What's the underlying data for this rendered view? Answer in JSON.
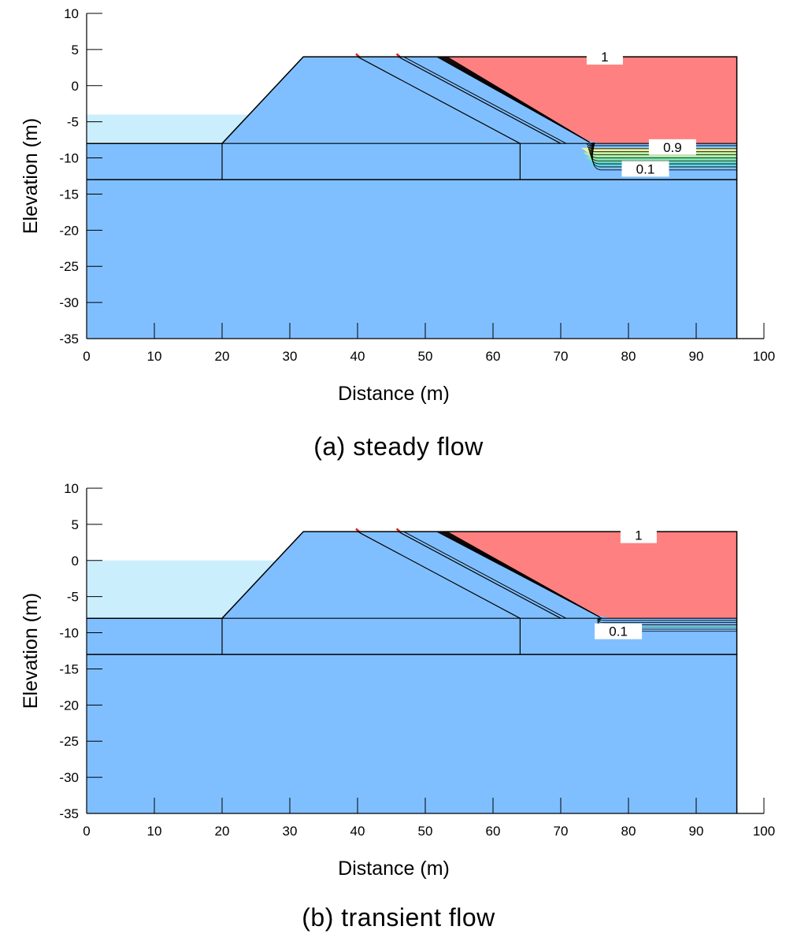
{
  "chart_data": [
    {
      "type": "contour",
      "caption": "(a) steady flow",
      "xlabel": "Distance (m)",
      "ylabel": "Elevation (m)",
      "xlim": [
        0,
        100
      ],
      "ylim": [
        -35,
        10
      ],
      "xticks": [
        0,
        10,
        20,
        30,
        40,
        50,
        60,
        70,
        80,
        90,
        100
      ],
      "yticks": [
        10,
        5,
        0,
        -5,
        -10,
        -15,
        -20,
        -25,
        -30,
        -35
      ],
      "colors": {
        "soil": "#80bfff",
        "saturated": "#ff8080",
        "water": "#cbeefc"
      },
      "reservoir_level": -4,
      "tailwater_toe_x": 74,
      "contour_labels": [
        {
          "text": "1",
          "x": 76.5,
          "y": 4.0
        },
        {
          "text": "0.9",
          "x": 86.5,
          "y": -8.5
        },
        {
          "text": "0.1",
          "x": 82.5,
          "y": -11.5
        }
      ]
    },
    {
      "type": "contour",
      "caption": "(b) transient flow",
      "xlabel": "Distance (m)",
      "ylabel": "Elevation (m)",
      "xlim": [
        0,
        100
      ],
      "ylim": [
        -35,
        10
      ],
      "xticks": [
        0,
        10,
        20,
        30,
        40,
        50,
        60,
        70,
        80,
        90,
        100
      ],
      "yticks": [
        10,
        5,
        0,
        -5,
        -10,
        -15,
        -20,
        -25,
        -30,
        -35
      ],
      "colors": {
        "soil": "#80bfff",
        "saturated": "#ff8080",
        "water": "#cbeefc"
      },
      "reservoir_level": 0,
      "tailwater_toe_x": 75.5,
      "contour_labels": [
        {
          "text": "1",
          "x": 81.5,
          "y": 3.5
        },
        {
          "text": "0.1",
          "x": 78.5,
          "y": -9.8
        }
      ]
    }
  ]
}
